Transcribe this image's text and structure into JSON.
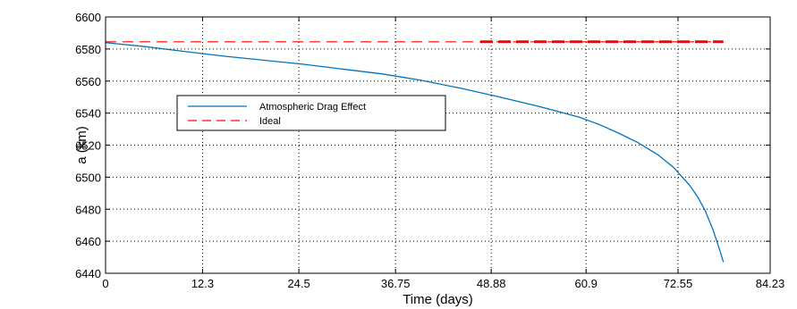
{
  "chart_data": {
    "type": "line",
    "title": "",
    "xlabel": "Time (days)",
    "ylabel": "a (km)",
    "xlim": [
      0,
      84.23
    ],
    "ylim": [
      6440,
      6600
    ],
    "x_ticks": [
      0,
      12.3,
      24.5,
      36.75,
      48.88,
      60.9,
      72.55,
      84.23
    ],
    "x_tick_labels": [
      "0",
      "12.3",
      "24.5",
      "36.75",
      "48.88",
      "60.9",
      "72.55",
      "84.23"
    ],
    "y_ticks": [
      6440,
      6460,
      6480,
      6500,
      6520,
      6540,
      6560,
      6580,
      6600
    ],
    "y_tick_labels": [
      "6440",
      "6460",
      "6480",
      "6500",
      "6520",
      "6540",
      "6560",
      "6580",
      "6600"
    ],
    "grid": "dotted",
    "legend_position": "left-middle",
    "series": [
      {
        "name": "Atmospheric Drag Effect",
        "style": "solid",
        "color": "#0072bd",
        "x": [
          0,
          5,
          10,
          15,
          20,
          25,
          30,
          35,
          40,
          45,
          50,
          55,
          60,
          62.5,
          65,
          67.5,
          70,
          72,
          74,
          75,
          76,
          77,
          77.8,
          78.3
        ],
        "y": [
          6584,
          6581.5,
          6578.5,
          6575.5,
          6573,
          6570.5,
          6567.5,
          6564.5,
          6560.5,
          6555.5,
          6550,
          6544,
          6537.5,
          6533,
          6527.5,
          6521.5,
          6514,
          6506,
          6495,
          6488,
          6479,
          6467,
          6455,
          6447
        ]
      },
      {
        "name": "Ideal",
        "style": "dashed",
        "color": "#ff0000",
        "x": [
          0,
          78.3
        ],
        "y": [
          6584.5,
          6584.5
        ]
      }
    ]
  }
}
